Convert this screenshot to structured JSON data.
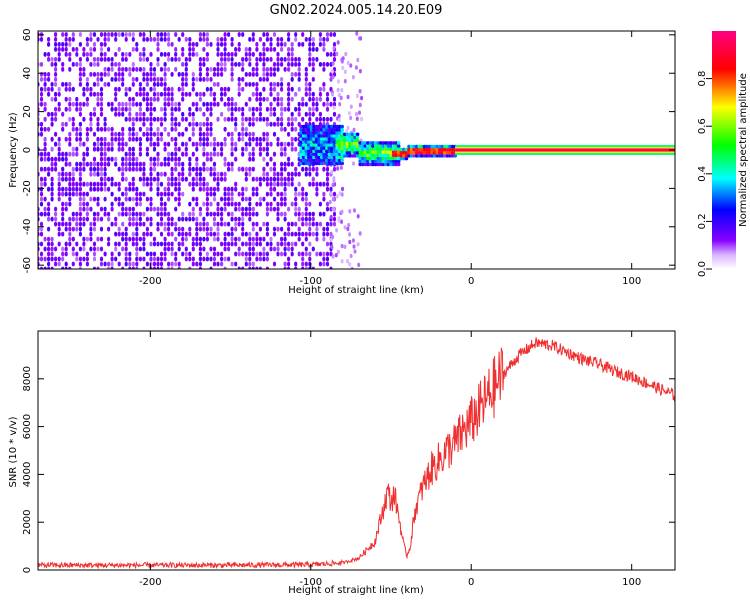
{
  "title": "GN02.2024.005.14.20.E09",
  "chart_data": [
    {
      "type": "heatmap",
      "xlabel": "Height of straight line (km)",
      "ylabel": "Frequency (Hz)",
      "xlim": [
        -270,
        127
      ],
      "ylim": [
        -62,
        62
      ],
      "x_ticks": [
        -200,
        -100,
        0,
        100
      ],
      "x_tick_labels": [
        "-200",
        "-100",
        "0",
        "100"
      ],
      "y_ticks": [
        60,
        40,
        20,
        0,
        -20,
        -40,
        -60
      ],
      "y_tick_labels": [
        "60",
        "40",
        "20",
        "0",
        "-20",
        "-40",
        "-60"
      ],
      "grid": false,
      "colorbar": {
        "label": "Normalized spectral amplitude",
        "range": [
          0,
          1
        ],
        "ticks": [
          0.0,
          0.2,
          0.4,
          0.6,
          0.8
        ],
        "tick_labels": [
          "0.0",
          "0.2",
          "0.4",
          "0.6",
          "0.8"
        ],
        "colors": [
          "#ffffff",
          "#8800ff",
          "#0000ff",
          "#00ffff",
          "#00ff00",
          "#ffff00",
          "#ff0000",
          "#ff0080"
        ]
      },
      "regions": [
        {
          "x_range": [
            -270,
            -85
          ],
          "y_range": [
            -62,
            62
          ],
          "amplitude": 0.1
        },
        {
          "x_range": [
            -105,
            -80
          ],
          "y_range": [
            -8,
            12
          ],
          "amplitude": 0.15
        },
        {
          "x_range": [
            -85,
            -10
          ],
          "y_range": [
            -8,
            8
          ],
          "amplitude": 0.4
        },
        {
          "x_range": [
            -10,
            127
          ],
          "y_range": [
            -2,
            2
          ],
          "amplitude": 0.95
        }
      ]
    },
    {
      "type": "line",
      "xlabel": "Height of straight line (km)",
      "ylabel": "SNR (10 * v/v)",
      "xlim": [
        -270,
        127
      ],
      "ylim": [
        0,
        10000
      ],
      "x_ticks": [
        -200,
        -100,
        0,
        100
      ],
      "x_tick_labels": [
        "-200",
        "-100",
        "0",
        "100"
      ],
      "y_ticks": [
        0,
        2000,
        4000,
        6000,
        8000
      ],
      "y_tick_labels": [
        "0",
        "2000",
        "4000",
        "6000",
        "8000"
      ],
      "grid": false,
      "series_color": "#f03030",
      "x": [
        -270,
        -250,
        -200,
        -150,
        -100,
        -80,
        -70,
        -60,
        -55,
        -52,
        -50,
        -48,
        -45,
        -42,
        -40,
        -38,
        -35,
        -30,
        -25,
        -20,
        -15,
        -10,
        -5,
        0,
        10,
        20,
        30,
        40,
        50,
        60,
        70,
        80,
        90,
        100,
        110,
        120,
        127
      ],
      "y": [
        200,
        200,
        200,
        200,
        220,
        300,
        500,
        1200,
        2500,
        3300,
        2800,
        3200,
        2200,
        1000,
        600,
        1000,
        2500,
        3500,
        4200,
        4600,
        5000,
        5300,
        5800,
        6200,
        7200,
        8200,
        9000,
        9500,
        9400,
        9100,
        8800,
        8600,
        8300,
        8100,
        7800,
        7500,
        7300
      ]
    }
  ]
}
